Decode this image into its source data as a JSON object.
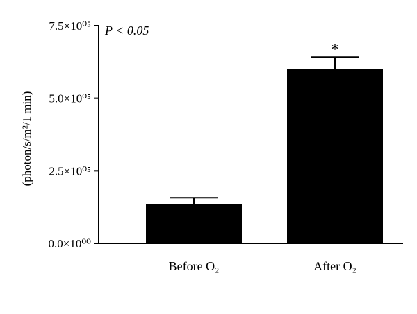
{
  "chart_data": {
    "type": "bar",
    "categories": [
      "Before O₂",
      "After O₂"
    ],
    "values": [
      135000,
      600000
    ],
    "error_upper": [
      157000,
      642000
    ],
    "ylabel": "(photon/s/m²/1 min)",
    "ylim": [
      0,
      750000
    ],
    "yticks": [
      {
        "value": 0,
        "label": "0.0×10⁰⁰"
      },
      {
        "value": 250000,
        "label": "2.5×10⁰⁵"
      },
      {
        "value": 500000,
        "label": "5.0×10⁰⁵"
      },
      {
        "value": 750000,
        "label": "7.5×10⁰⁵"
      }
    ],
    "annotations": {
      "significance_text": "P < 0.05",
      "significance_marker": "*"
    },
    "bar_color": "#000000",
    "grid": false,
    "legend": "none"
  }
}
